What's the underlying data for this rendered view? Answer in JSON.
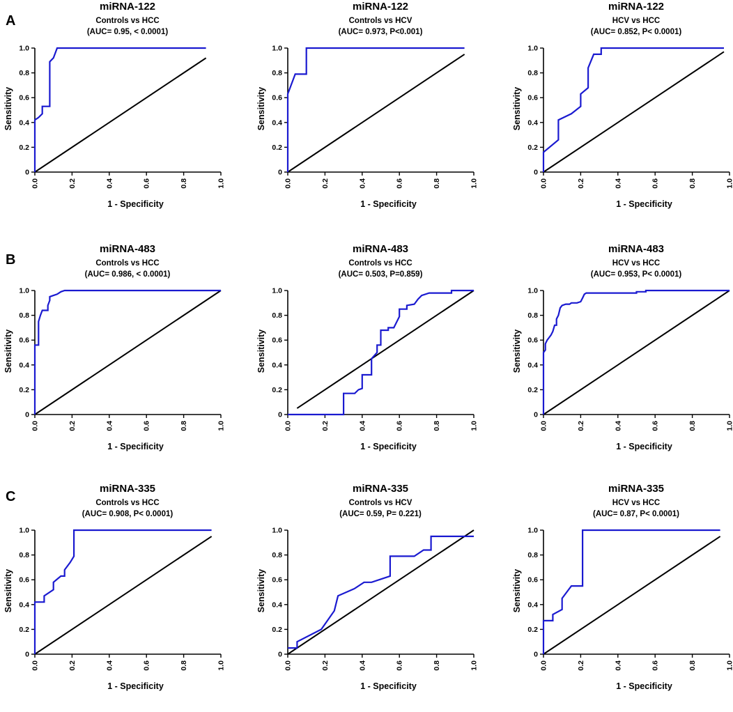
{
  "colors": {
    "roc": "#1a1ad0",
    "reference": "#000000",
    "axis": "#000000"
  },
  "row_labels": [
    "A",
    "B",
    "C"
  ],
  "chart_data": [
    {
      "type": "line",
      "row": 0,
      "col": 0,
      "title": "miRNA-122",
      "subtitle": "Controls vs HCC",
      "stats": "(AUC= 0.95, < 0.0001)",
      "xlabel": "1 - Specificity",
      "ylabel": "Sensitivity",
      "xlim": [
        0,
        1
      ],
      "ylim": [
        0,
        1
      ],
      "xticks": [
        "0.0",
        "0.2",
        "0.4",
        "0.6",
        "0.8",
        "1.0"
      ],
      "yticks": [
        "0",
        "0.2",
        "0.4",
        "0.6",
        "0.8",
        "1.0"
      ],
      "reference": [
        [
          0,
          0
        ],
        [
          0.92,
          0.92
        ]
      ],
      "series": [
        {
          "name": "ROC",
          "points": [
            [
              0,
              0
            ],
            [
              0,
              0.42
            ],
            [
              0.02,
              0.44
            ],
            [
              0.04,
              0.47
            ],
            [
              0.04,
              0.53
            ],
            [
              0.08,
              0.53
            ],
            [
              0.08,
              0.89
            ],
            [
              0.1,
              0.92
            ],
            [
              0.12,
              1.0
            ],
            [
              0.92,
              1.0
            ]
          ]
        }
      ]
    },
    {
      "type": "line",
      "row": 0,
      "col": 1,
      "title": "miRNA-122",
      "subtitle": "Controls vs HCV",
      "stats": "(AUC= 0.973, P<0.001)",
      "xlabel": "1 - Specificity",
      "ylabel": "Sensitivity",
      "xlim": [
        0,
        1
      ],
      "ylim": [
        0,
        1
      ],
      "xticks": [
        "0.0",
        "0.2",
        "0.4",
        "0.6",
        "0.8",
        "1.0"
      ],
      "yticks": [
        "0",
        "0.2",
        "0.4",
        "0.6",
        "0.8",
        "1.0"
      ],
      "reference": [
        [
          0,
          0
        ],
        [
          0.95,
          0.95
        ]
      ],
      "series": [
        {
          "name": "ROC",
          "points": [
            [
              0,
              0
            ],
            [
              0,
              0.63
            ],
            [
              0.04,
              0.79
            ],
            [
              0.1,
              0.79
            ],
            [
              0.1,
              1.0
            ],
            [
              0.95,
              1.0
            ]
          ]
        }
      ]
    },
    {
      "type": "line",
      "row": 0,
      "col": 2,
      "title": "miRNA-122",
      "subtitle": "HCV vs HCC",
      "stats": "(AUC= 0.852, P< 0.0001)",
      "xlabel": "1 - Specificity",
      "ylabel": "Sensitivity",
      "xlim": [
        0,
        1
      ],
      "ylim": [
        0,
        1
      ],
      "xticks": [
        "0.0",
        "0.2",
        "0.4",
        "0.6",
        "0.8",
        "1.0"
      ],
      "yticks": [
        "0",
        "0.2",
        "0.4",
        "0.6",
        "0.8",
        "1.0"
      ],
      "reference": [
        [
          0,
          0
        ],
        [
          0.97,
          0.97
        ]
      ],
      "series": [
        {
          "name": "ROC",
          "points": [
            [
              0,
              0
            ],
            [
              0,
              0.16
            ],
            [
              0.08,
              0.26
            ],
            [
              0.08,
              0.42
            ],
            [
              0.15,
              0.47
            ],
            [
              0.2,
              0.53
            ],
            [
              0.2,
              0.63
            ],
            [
              0.24,
              0.68
            ],
            [
              0.24,
              0.84
            ],
            [
              0.27,
              0.95
            ],
            [
              0.31,
              0.95
            ],
            [
              0.31,
              1.0
            ],
            [
              0.97,
              1.0
            ]
          ]
        }
      ]
    },
    {
      "type": "line",
      "row": 1,
      "col": 0,
      "title": "miRNA-483",
      "subtitle": "Controls vs HCC",
      "stats": "(AUC= 0.986, < 0.0001)",
      "xlabel": "1 - Specificity",
      "ylabel": "Sensitivity",
      "xlim": [
        0,
        1
      ],
      "ylim": [
        0,
        1
      ],
      "xticks": [
        "0.0",
        "0.2",
        "0.4",
        "0.6",
        "0.8",
        "1.0"
      ],
      "yticks": [
        "0",
        "0.2",
        "0.4",
        "0.6",
        "0.8",
        "1.0"
      ],
      "reference": [
        [
          0,
          0
        ],
        [
          1.0,
          1.0
        ]
      ],
      "series": [
        {
          "name": "ROC",
          "points": [
            [
              0,
              0
            ],
            [
              0,
              0.56
            ],
            [
              0.02,
              0.56
            ],
            [
              0.02,
              0.75
            ],
            [
              0.03,
              0.8
            ],
            [
              0.04,
              0.84
            ],
            [
              0.07,
              0.84
            ],
            [
              0.07,
              0.88
            ],
            [
              0.08,
              0.92
            ],
            [
              0.08,
              0.95
            ],
            [
              0.1,
              0.96
            ],
            [
              0.12,
              0.97
            ],
            [
              0.14,
              0.99
            ],
            [
              0.16,
              1.0
            ],
            [
              1.0,
              1.0
            ]
          ]
        }
      ]
    },
    {
      "type": "line",
      "row": 1,
      "col": 1,
      "title": "miRNA-483",
      "subtitle": "Controls vs HCC",
      "stats": "(AUC= 0.503, P=0.859)",
      "xlabel": "1 - Specificity",
      "ylabel": "Sensitivity",
      "xlim": [
        0,
        1
      ],
      "ylim": [
        0,
        1
      ],
      "xticks": [
        "0.0",
        "0.2",
        "0.4",
        "0.6",
        "0.8",
        "1.0"
      ],
      "yticks": [
        "0",
        "0.2",
        "0.4",
        "0.6",
        "0.8",
        "1.0"
      ],
      "reference": [
        [
          0.05,
          0.05
        ],
        [
          1.0,
          1.0
        ]
      ],
      "series": [
        {
          "name": "ROC",
          "points": [
            [
              0,
              0
            ],
            [
              0.3,
              0
            ],
            [
              0.3,
              0.17
            ],
            [
              0.36,
              0.17
            ],
            [
              0.38,
              0.2
            ],
            [
              0.4,
              0.21
            ],
            [
              0.4,
              0.32
            ],
            [
              0.45,
              0.32
            ],
            [
              0.45,
              0.45
            ],
            [
              0.48,
              0.5
            ],
            [
              0.48,
              0.56
            ],
            [
              0.5,
              0.56
            ],
            [
              0.5,
              0.68
            ],
            [
              0.54,
              0.68
            ],
            [
              0.54,
              0.7
            ],
            [
              0.57,
              0.7
            ],
            [
              0.6,
              0.79
            ],
            [
              0.6,
              0.85
            ],
            [
              0.64,
              0.85
            ],
            [
              0.64,
              0.88
            ],
            [
              0.68,
              0.89
            ],
            [
              0.7,
              0.93
            ],
            [
              0.72,
              0.96
            ],
            [
              0.76,
              0.98
            ],
            [
              0.88,
              0.98
            ],
            [
              0.88,
              1.0
            ],
            [
              1.0,
              1.0
            ]
          ]
        }
      ]
    },
    {
      "type": "line",
      "row": 1,
      "col": 2,
      "title": "miRNA-483",
      "subtitle": "HCV vs HCC",
      "stats": "(AUC= 0.953, P< 0.0001)",
      "xlabel": "1 - Specificity",
      "ylabel": "Sensitivity",
      "xlim": [
        0,
        1
      ],
      "ylim": [
        0,
        1
      ],
      "xticks": [
        "0.0",
        "0.2",
        "0.4",
        "0.6",
        "0.8",
        "1.0"
      ],
      "yticks": [
        "0",
        "0.2",
        "0.4",
        "0.6",
        "0.8",
        "1.0"
      ],
      "reference": [
        [
          0,
          0
        ],
        [
          1.0,
          1.0
        ]
      ],
      "series": [
        {
          "name": "ROC",
          "points": [
            [
              0,
              0
            ],
            [
              0,
              0.5
            ],
            [
              0.01,
              0.52
            ],
            [
              0.01,
              0.57
            ],
            [
              0.02,
              0.6
            ],
            [
              0.03,
              0.62
            ],
            [
              0.04,
              0.64
            ],
            [
              0.05,
              0.67
            ],
            [
              0.06,
              0.72
            ],
            [
              0.07,
              0.72
            ],
            [
              0.07,
              0.77
            ],
            [
              0.08,
              0.8
            ],
            [
              0.09,
              0.86
            ],
            [
              0.1,
              0.88
            ],
            [
              0.12,
              0.89
            ],
            [
              0.14,
              0.89
            ],
            [
              0.15,
              0.9
            ],
            [
              0.18,
              0.9
            ],
            [
              0.2,
              0.91
            ],
            [
              0.21,
              0.94
            ],
            [
              0.22,
              0.97
            ],
            [
              0.23,
              0.98
            ],
            [
              0.5,
              0.98
            ],
            [
              0.5,
              0.99
            ],
            [
              0.55,
              0.99
            ],
            [
              0.55,
              1.0
            ],
            [
              1.0,
              1.0
            ]
          ]
        }
      ]
    },
    {
      "type": "line",
      "row": 2,
      "col": 0,
      "title": "miRNA-335",
      "subtitle": "Controls vs HCC",
      "stats": "(AUC= 0.908, P< 0.0001)",
      "xlabel": "1 - Specificity",
      "ylabel": "Sensitivity",
      "xlim": [
        0,
        1
      ],
      "ylim": [
        0,
        1
      ],
      "xticks": [
        "0.0",
        "0.2",
        "0.4",
        "0.6",
        "0.8",
        "1.0"
      ],
      "yticks": [
        "0",
        "0.2",
        "0.4",
        "0.6",
        "0.8",
        "1.0"
      ],
      "reference": [
        [
          0,
          0
        ],
        [
          0.95,
          0.95
        ]
      ],
      "series": [
        {
          "name": "ROC",
          "points": [
            [
              0,
              0
            ],
            [
              0,
              0.42
            ],
            [
              0.05,
              0.42
            ],
            [
              0.05,
              0.47
            ],
            [
              0.1,
              0.52
            ],
            [
              0.1,
              0.58
            ],
            [
              0.14,
              0.63
            ],
            [
              0.16,
              0.63
            ],
            [
              0.16,
              0.68
            ],
            [
              0.19,
              0.74
            ],
            [
              0.21,
              0.79
            ],
            [
              0.21,
              1.0
            ],
            [
              0.95,
              1.0
            ]
          ]
        }
      ]
    },
    {
      "type": "line",
      "row": 2,
      "col": 1,
      "title": "miRNA-335",
      "subtitle": "Controls vs HCV",
      "stats": "(AUC= 0.59, P= 0.221)",
      "xlabel": "1 - Specificity",
      "ylabel": "Sensitivity",
      "xlim": [
        0,
        1
      ],
      "ylim": [
        0,
        1
      ],
      "xticks": [
        "0.0",
        "0.2",
        "0.4",
        "0.6",
        "0.8",
        "1.0"
      ],
      "yticks": [
        "0",
        "0.2",
        "0.4",
        "0.6",
        "0.8",
        "1.0"
      ],
      "reference": [
        [
          0,
          0
        ],
        [
          1.0,
          1.0
        ]
      ],
      "series": [
        {
          "name": "ROC",
          "points": [
            [
              0,
              0.05
            ],
            [
              0.05,
              0.05
            ],
            [
              0.05,
              0.1
            ],
            [
              0.18,
              0.2
            ],
            [
              0.25,
              0.35
            ],
            [
              0.27,
              0.47
            ],
            [
              0.36,
              0.53
            ],
            [
              0.41,
              0.58
            ],
            [
              0.45,
              0.58
            ],
            [
              0.55,
              0.63
            ],
            [
              0.55,
              0.79
            ],
            [
              0.68,
              0.79
            ],
            [
              0.73,
              0.84
            ],
            [
              0.77,
              0.84
            ],
            [
              0.77,
              0.95
            ],
            [
              1.0,
              0.95
            ]
          ]
        }
      ]
    },
    {
      "type": "line",
      "row": 2,
      "col": 2,
      "title": "miRNA-335",
      "subtitle": "HCV vs HCC",
      "stats": "(AUC= 0.87, P< 0.0001)",
      "xlabel": "1 - Specificity",
      "ylabel": "Sensitivity",
      "xlim": [
        0,
        1
      ],
      "ylim": [
        0,
        1
      ],
      "xticks": [
        "0.0",
        "0.2",
        "0.4",
        "0.6",
        "0.8",
        "1.0"
      ],
      "yticks": [
        "0",
        "0.2",
        "0.4",
        "0.6",
        "0.8",
        "1.0"
      ],
      "reference": [
        [
          0,
          0
        ],
        [
          0.95,
          0.95
        ]
      ],
      "series": [
        {
          "name": "ROC",
          "points": [
            [
              0,
              0
            ],
            [
              0,
              0.27
            ],
            [
              0.05,
              0.27
            ],
            [
              0.05,
              0.32
            ],
            [
              0.1,
              0.36
            ],
            [
              0.1,
              0.45
            ],
            [
              0.15,
              0.55
            ],
            [
              0.21,
              0.55
            ],
            [
              0.21,
              1.0
            ],
            [
              0.95,
              1.0
            ]
          ]
        }
      ]
    }
  ]
}
